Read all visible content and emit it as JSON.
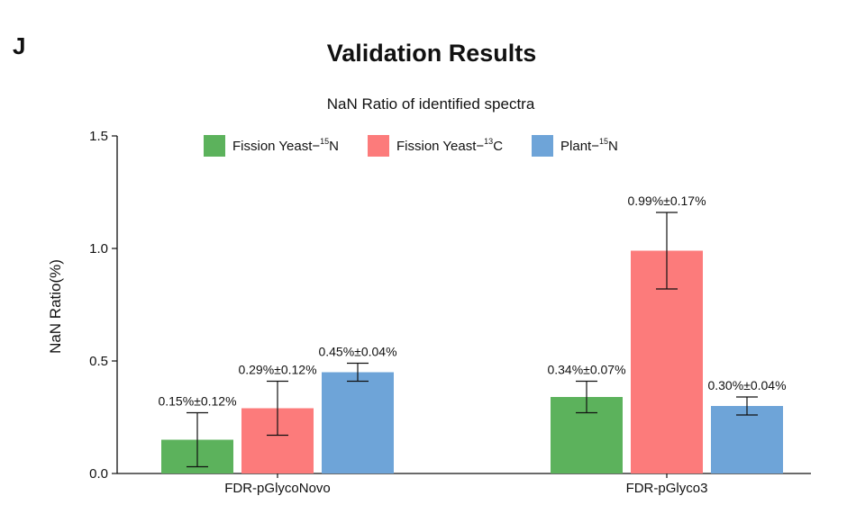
{
  "panel_label": "J",
  "page_title": "Validation Results",
  "chart_data": {
    "type": "bar",
    "title": "NaN Ratio of identified spectra",
    "xlabel": "",
    "ylabel": "NaN Ratio(%)",
    "ylim": [
      0,
      1.5
    ],
    "yticks": [
      "0.0",
      "0.5",
      "1.0",
      "1.5"
    ],
    "ytick_values": [
      0,
      0.5,
      1.0,
      1.5
    ],
    "categories": [
      "FDR-pGlycoNovo",
      "FDR-pGlyco3"
    ],
    "series": [
      {
        "name": "Fission Yeast-15N",
        "legend_base": "Fission Yeast",
        "legend_sep": "−",
        "legend_sup": "15",
        "legend_elem": "N",
        "color": "#5cb25c",
        "values": [
          0.15,
          0.34
        ],
        "errors": [
          0.12,
          0.07
        ],
        "labels": [
          "0.15%±0.12%",
          "0.34%±0.07%"
        ]
      },
      {
        "name": "Fission Yeast-13C",
        "legend_base": "Fission Yeast",
        "legend_sep": "−",
        "legend_sup": "13",
        "legend_elem": "C",
        "color": "#fc7b7b",
        "values": [
          0.29,
          0.99
        ],
        "errors": [
          0.12,
          0.17
        ],
        "labels": [
          "0.29%±0.12%",
          "0.99%±0.17%"
        ]
      },
      {
        "name": "Plant-15N",
        "legend_base": "Plant",
        "legend_sep": "−",
        "legend_sup": "15",
        "legend_elem": "N",
        "color": "#6ea4d8",
        "values": [
          0.45,
          0.3
        ],
        "errors": [
          0.04,
          0.04
        ],
        "labels": [
          "0.45%±0.04%",
          "0.30%±0.04%"
        ]
      }
    ],
    "legend_position": "top"
  }
}
